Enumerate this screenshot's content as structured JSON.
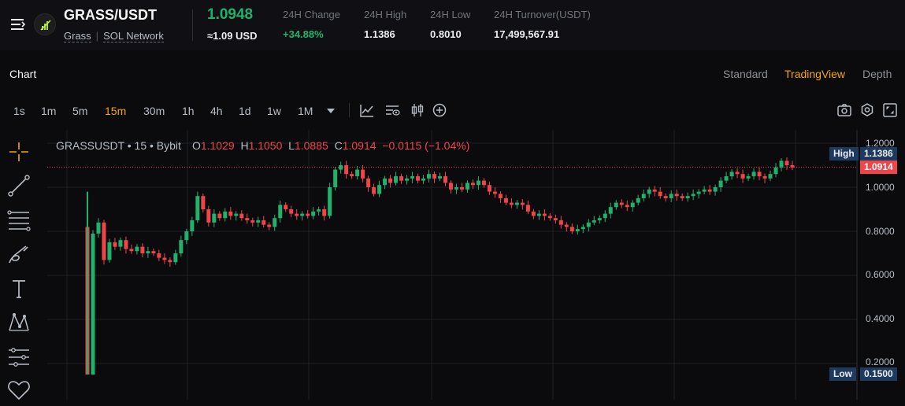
{
  "header": {
    "pair": "GRASS/USDT",
    "tag1": "Grass",
    "tag2": "SOL Network",
    "last_price": "1.0948",
    "usd_price": "≈1.09 USD",
    "stats": [
      {
        "label": "24H Change",
        "value": "+34.88%"
      },
      {
        "label": "24H High",
        "value": "1.1386"
      },
      {
        "label": "24H Low",
        "value": "0.8010"
      },
      {
        "label": "24H Turnover(USDT)",
        "value": "17,499,567.91"
      }
    ]
  },
  "chart_header": {
    "title": "Chart",
    "views": [
      "Standard",
      "TradingView",
      "Depth"
    ],
    "active_view": "TradingView"
  },
  "timeframes": [
    "1s",
    "1m",
    "5m",
    "15m",
    "30m",
    "1h",
    "4h",
    "1d",
    "1w",
    "1M"
  ],
  "active_timeframe": "15m",
  "toolbar_icons": [
    "dropdown-arrow-icon",
    "indicators-icon",
    "chart-settings-icon",
    "candle-type-icon",
    "add-icon",
    "camera-icon",
    "gear-icon",
    "fullscreen-icon"
  ],
  "left_tools": [
    "crosshair-icon",
    "trend-line-icon",
    "fib-lines-icon",
    "brush-icon",
    "text-icon",
    "pattern-icon",
    "measure-icon",
    "favorite-icon"
  ],
  "legend": {
    "symbol": "GRASSUSDT • 15 • Bybit",
    "o_key": "O",
    "o": "1.1029",
    "h_key": "H",
    "h": "1.1050",
    "l_key": "L",
    "l": "1.0885",
    "c_key": "C",
    "c": "1.0914",
    "change": "−0.0115 (−1.04%)"
  },
  "chart_data": {
    "type": "candlestick",
    "symbol": "GRASSUSDT",
    "interval": "15",
    "exchange": "Bybit",
    "y_ticks": [
      "1.2000",
      "1.0000",
      "0.8000",
      "0.6000",
      "0.4000",
      "0.2000"
    ],
    "ylim": [
      0.12,
      1.23
    ],
    "high_label": "High",
    "high_value": "1.1386",
    "low_label": "Low",
    "low_value": "0.1500",
    "current_value": "1.0914",
    "closes": [
      0.15,
      0.79,
      0.84,
      0.67,
      0.75,
      0.73,
      0.76,
      0.72,
      0.71,
      0.73,
      0.7,
      0.71,
      0.7,
      0.68,
      0.67,
      0.66,
      0.7,
      0.76,
      0.8,
      0.85,
      0.96,
      0.9,
      0.84,
      0.88,
      0.86,
      0.89,
      0.87,
      0.88,
      0.86,
      0.85,
      0.84,
      0.85,
      0.83,
      0.82,
      0.86,
      0.92,
      0.9,
      0.88,
      0.87,
      0.88,
      0.87,
      0.89,
      0.9,
      0.87,
      1.0,
      1.08,
      1.1,
      1.06,
      1.05,
      1.08,
      1.04,
      1.0,
      0.97,
      1.01,
      1.04,
      1.02,
      1.05,
      1.03,
      1.04,
      1.05,
      1.03,
      1.04,
      1.06,
      1.04,
      1.05,
      1.02,
      0.99,
      1.0,
      0.99,
      1.02,
      1.01,
      1.03,
      1.01,
      0.98,
      0.97,
      0.95,
      0.93,
      0.92,
      0.93,
      0.92,
      0.89,
      0.87,
      0.88,
      0.87,
      0.86,
      0.85,
      0.83,
      0.82,
      0.8,
      0.81,
      0.82,
      0.84,
      0.85,
      0.86,
      0.88,
      0.91,
      0.93,
      0.92,
      0.91,
      0.93,
      0.95,
      0.97,
      0.99,
      0.98,
      0.96,
      0.95,
      0.97,
      0.96,
      0.95,
      0.96,
      0.97,
      0.98,
      0.99,
      0.98,
      1.0,
      1.03,
      1.05,
      1.07,
      1.06,
      1.04,
      1.05,
      1.07,
      1.05,
      1.04,
      1.06,
      1.09,
      1.12,
      1.1,
      1.09
    ]
  }
}
